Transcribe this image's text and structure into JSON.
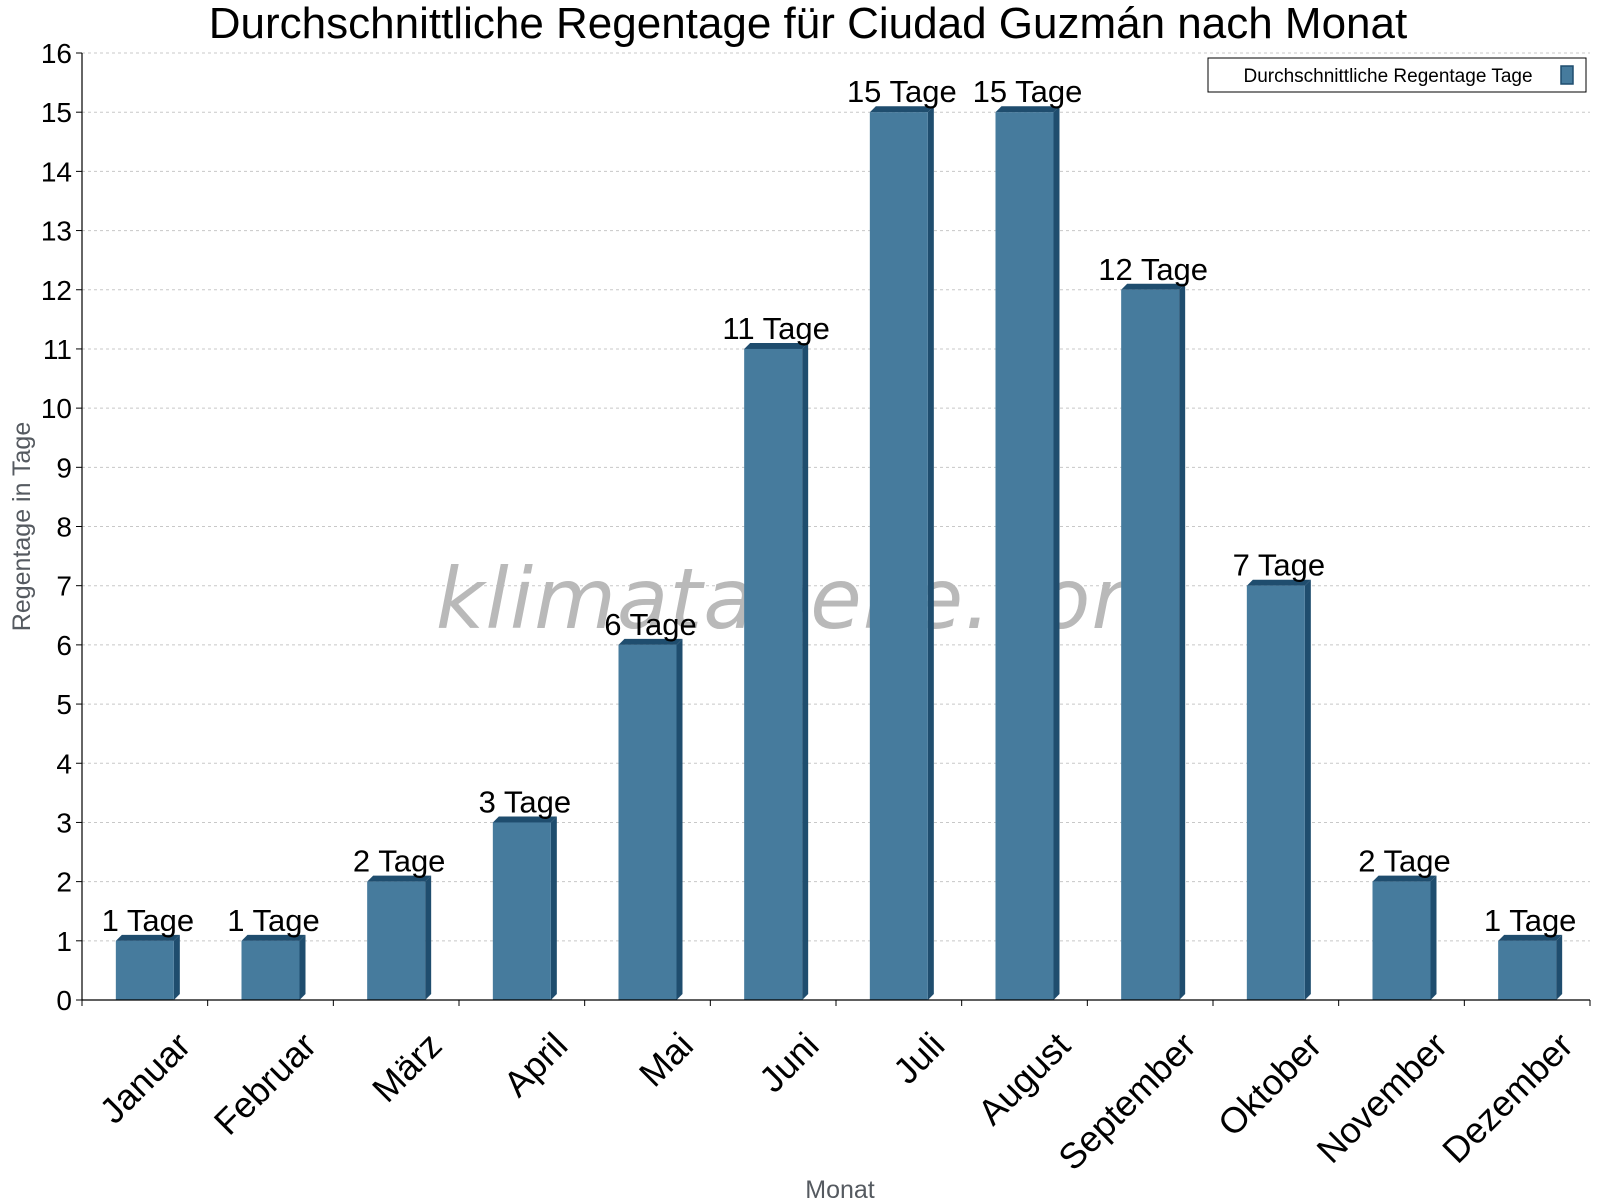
{
  "chart_data": {
    "type": "bar",
    "title": "Durchschnittliche Regentage für Ciudad Guzmán nach Monat",
    "xlabel": "Monat",
    "ylabel": "Regentage in Tage",
    "ylim": [
      0,
      16
    ],
    "yticks": [
      "0",
      "1",
      "2",
      "3",
      "4",
      "5",
      "6",
      "7",
      "8",
      "9",
      "10",
      "11",
      "12",
      "13",
      "14",
      "15",
      "16"
    ],
    "categories": [
      "Januar",
      "Februar",
      "März",
      "April",
      "Mai",
      "Juni",
      "Juli",
      "August",
      "September",
      "Oktober",
      "November",
      "Dezember"
    ],
    "series": [
      {
        "name": "Durchschnittliche Regentage Tage",
        "values": [
          1,
          1,
          2,
          3,
          6,
          11,
          15,
          15,
          12,
          7,
          2,
          1
        ]
      }
    ],
    "data_labels": [
      "1 Tage",
      "1 Tage",
      "2 Tage",
      "3 Tage",
      "6 Tage",
      "11 Tage",
      "15 Tage",
      "15 Tage",
      "12 Tage",
      "7 Tage",
      "2 Tage",
      "1 Tage"
    ],
    "legend_position": "top-right",
    "grid": true,
    "colors": {
      "bar": "#467b9d",
      "bar_dark": "#1f4d6e"
    },
    "watermark": "klimatabelle.com"
  }
}
